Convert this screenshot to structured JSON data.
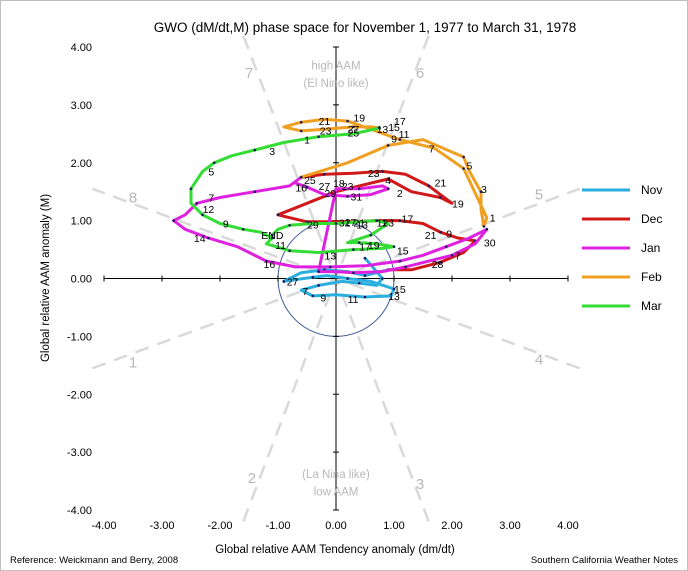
{
  "chart_data": {
    "type": "line",
    "title": "GWO (dM/dt,M)  phase space for November 1, 1977 to March 31, 1978",
    "xlabel": "Global relative AAM Tendency anomaly  (dm/dt)",
    "ylabel": "Global relative AAM anomaly  (M)",
    "xlim": [
      -4,
      4
    ],
    "ylim": [
      -4,
      4
    ],
    "xticks": [
      "-4.00",
      "-3.00",
      "-2.00",
      "-1.00",
      "0.00",
      "1.00",
      "2.00",
      "3.00",
      "4.00"
    ],
    "yticks": [
      "-4.00",
      "-3.00",
      "-2.00",
      "-1.00",
      "0.00",
      "1.00",
      "2.00",
      "3.00",
      "4.00"
    ],
    "grid": false,
    "legend_position": "right",
    "reference_circle_radius": 1,
    "phase_labels": [
      {
        "label": "1",
        "x": -3.5,
        "y": -1.45
      },
      {
        "label": "2",
        "x": -1.45,
        "y": -3.45
      },
      {
        "label": "3",
        "x": 1.45,
        "y": -3.55
      },
      {
        "label": "4",
        "x": 3.5,
        "y": -1.4
      },
      {
        "label": "5",
        "x": 3.5,
        "y": 1.45
      },
      {
        "label": "6",
        "x": 1.45,
        "y": 3.55
      },
      {
        "label": "7",
        "x": -1.5,
        "y": 3.55
      },
      {
        "label": "8",
        "x": -3.5,
        "y": 1.4
      }
    ],
    "region_labels": {
      "top_line1": "high AAM",
      "top_line2": "(El Nino like)",
      "bottom_line1": "(La Nina like)",
      "bottom_line2": "low AAM"
    },
    "end_label": "END",
    "series": [
      {
        "name": "Nov",
        "color": "#2aaee0",
        "points": [
          [
            0.5,
            0.35
          ],
          [
            0.7,
            0.12
          ],
          [
            0.8,
            0.0
          ],
          [
            0.7,
            -0.12
          ],
          [
            0.4,
            -0.08
          ],
          [
            0.1,
            -0.05
          ],
          [
            -0.3,
            -0.12
          ],
          [
            -0.6,
            -0.2
          ],
          [
            -0.4,
            -0.3
          ],
          [
            0.0,
            -0.28
          ],
          [
            0.5,
            -0.32
          ],
          [
            0.95,
            -0.3
          ],
          [
            1.0,
            -0.18
          ],
          [
            0.6,
            -0.05
          ],
          [
            0.2,
            0.0
          ],
          [
            -0.15,
            0.05
          ],
          [
            -0.4,
            0.02
          ],
          [
            -0.7,
            -0.02
          ],
          [
            -0.9,
            -0.05
          ],
          [
            -0.6,
            0.1
          ],
          [
            -0.2,
            0.15
          ],
          [
            0.2,
            0.12
          ],
          [
            0.5,
            0.05
          ],
          [
            0.9,
            0.15
          ]
        ],
        "labels": [
          {
            "text": "27",
            "x": -0.85,
            "y": -0.05
          },
          {
            "text": "7",
            "x": -0.58,
            "y": -0.22
          },
          {
            "text": "9",
            "x": -0.27,
            "y": -0.33
          },
          {
            "text": "11",
            "x": 0.2,
            "y": -0.35
          },
          {
            "text": "13",
            "x": 0.9,
            "y": -0.3
          },
          {
            "text": "15",
            "x": 1.0,
            "y": -0.18
          }
        ]
      },
      {
        "name": "Dec",
        "color": "#d01818",
        "points": [
          [
            0.9,
            0.15
          ],
          [
            1.3,
            0.15
          ],
          [
            1.8,
            0.28
          ],
          [
            2.2,
            0.45
          ],
          [
            2.4,
            0.65
          ],
          [
            2.1,
            0.7
          ],
          [
            1.8,
            0.8
          ],
          [
            1.5,
            0.95
          ],
          [
            1.1,
            1.0
          ],
          [
            0.7,
            1.0
          ],
          [
            0.3,
            0.98
          ],
          [
            -0.1,
            0.98
          ],
          [
            -0.5,
            0.98
          ],
          [
            -0.8,
            1.05
          ],
          [
            -1.0,
            1.1
          ],
          [
            -0.5,
            1.3
          ],
          [
            0.0,
            1.5
          ],
          [
            0.4,
            1.6
          ],
          [
            0.9,
            1.72
          ],
          [
            1.3,
            1.5
          ],
          [
            1.8,
            1.4
          ],
          [
            2.0,
            1.3
          ],
          [
            1.6,
            1.6
          ],
          [
            1.2,
            1.8
          ],
          [
            0.8,
            1.85
          ],
          [
            0.3,
            1.82
          ],
          [
            -0.2,
            1.8
          ],
          [
            -0.6,
            1.75
          ]
        ],
        "labels": [
          {
            "text": "28",
            "x": 1.65,
            "y": 0.25
          },
          {
            "text": "7",
            "x": 2.05,
            "y": 0.4
          },
          {
            "text": "9",
            "x": 1.9,
            "y": 0.78
          },
          {
            "text": "21",
            "x": 1.53,
            "y": 0.75
          },
          {
            "text": "17",
            "x": 1.13,
            "y": 1.04
          },
          {
            "text": "19",
            "x": 2.0,
            "y": 1.3
          },
          {
            "text": "21",
            "x": 1.7,
            "y": 1.66
          },
          {
            "text": "23",
            "x": 0.55,
            "y": 1.82
          }
        ]
      },
      {
        "name": "Jan",
        "color": "#e020e0",
        "points": [
          [
            -0.6,
            1.75
          ],
          [
            -0.8,
            1.6
          ],
          [
            -1.4,
            1.5
          ],
          [
            -2.0,
            1.4
          ],
          [
            -2.4,
            1.3
          ],
          [
            -2.6,
            1.1
          ],
          [
            -2.8,
            1.0
          ],
          [
            -2.6,
            0.85
          ],
          [
            -2.2,
            0.7
          ],
          [
            -1.7,
            0.55
          ],
          [
            -1.2,
            0.3
          ],
          [
            -0.7,
            0.2
          ],
          [
            -0.1,
            0.2
          ],
          [
            0.5,
            0.22
          ],
          [
            1.1,
            0.3
          ],
          [
            1.5,
            0.4
          ],
          [
            1.9,
            0.55
          ],
          [
            2.3,
            0.7
          ],
          [
            2.6,
            0.85
          ],
          [
            2.4,
            0.6
          ],
          [
            2.0,
            0.4
          ],
          [
            1.6,
            0.3
          ],
          [
            1.2,
            0.2
          ],
          [
            0.8,
            0.12
          ],
          [
            0.3,
            0.1
          ],
          [
            0.0,
            0.12
          ],
          [
            -0.3,
            0.12
          ],
          [
            0.0,
            1.55
          ],
          [
            0.4,
            1.55
          ],
          [
            0.8,
            1.6
          ],
          [
            0.9,
            1.55
          ],
          [
            0.6,
            1.45
          ],
          [
            0.2,
            1.42
          ],
          [
            -0.2,
            1.45
          ],
          [
            -0.5,
            1.58
          ],
          [
            -0.7,
            1.65
          ]
        ],
        "labels": [
          {
            "text": "14",
            "x": -2.45,
            "y": 0.7
          },
          {
            "text": "16",
            "x": -1.25,
            "y": 0.25
          },
          {
            "text": "12",
            "x": -2.3,
            "y": 1.2
          },
          {
            "text": "7",
            "x": -2.2,
            "y": 1.4
          },
          {
            "text": "9",
            "x": -1.95,
            "y": 0.95
          },
          {
            "text": "30",
            "x": 2.55,
            "y": 0.62
          },
          {
            "text": "2",
            "x": 1.05,
            "y": 1.48
          },
          {
            "text": "4",
            "x": 0.85,
            "y": 1.7
          },
          {
            "text": "31",
            "x": 0.25,
            "y": 1.42
          },
          {
            "text": "29",
            "x": -0.2,
            "y": 1.48
          },
          {
            "text": "27",
            "x": -0.3,
            "y": 1.6
          },
          {
            "text": "25",
            "x": -0.55,
            "y": 1.7
          },
          {
            "text": "16",
            "x": -0.7,
            "y": 1.57
          },
          {
            "text": "18",
            "x": -0.05,
            "y": 1.65
          },
          {
            "text": "23",
            "x": 0.1,
            "y": 1.6
          }
        ]
      },
      {
        "name": "Feb",
        "color": "#f0a020",
        "points": [
          [
            -0.6,
            1.75
          ],
          [
            0.2,
            2.0
          ],
          [
            0.9,
            2.3
          ],
          [
            1.5,
            2.4
          ],
          [
            2.2,
            2.1
          ],
          [
            2.3,
            1.85
          ],
          [
            2.5,
            1.5
          ],
          [
            2.5,
            1.2
          ],
          [
            2.55,
            0.9
          ],
          [
            2.6,
            1.05
          ],
          [
            2.2,
            1.9
          ],
          [
            1.7,
            2.25
          ],
          [
            1.1,
            2.4
          ],
          [
            0.6,
            2.58
          ],
          [
            0.2,
            2.72
          ],
          [
            -0.2,
            2.75
          ],
          [
            -0.6,
            2.7
          ],
          [
            -0.9,
            2.62
          ],
          [
            -0.6,
            2.55
          ],
          [
            -0.2,
            2.58
          ],
          [
            0.3,
            2.62
          ],
          [
            0.6,
            2.62
          ],
          [
            0.75,
            2.6
          ]
        ],
        "labels": [
          {
            "text": "1",
            "x": 2.65,
            "y": 1.05
          },
          {
            "text": "3",
            "x": 2.5,
            "y": 1.55
          },
          {
            "text": "5",
            "x": 2.25,
            "y": 1.95
          },
          {
            "text": "7",
            "x": 1.6,
            "y": 2.25
          },
          {
            "text": "9",
            "x": 0.95,
            "y": 2.42
          },
          {
            "text": "11",
            "x": 1.08,
            "y": 2.5
          },
          {
            "text": "13",
            "x": 0.7,
            "y": 2.58
          },
          {
            "text": "15",
            "x": 0.9,
            "y": 2.62
          },
          {
            "text": "17",
            "x": 1.0,
            "y": 2.72
          },
          {
            "text": "19",
            "x": 0.3,
            "y": 2.78
          },
          {
            "text": "21",
            "x": -0.3,
            "y": 2.72
          },
          {
            "text": "23",
            "x": -0.28,
            "y": 2.56
          },
          {
            "text": "25",
            "x": 0.2,
            "y": 2.52
          },
          {
            "text": "27",
            "x": 0.2,
            "y": 2.58
          }
        ]
      },
      {
        "name": "Mar",
        "color": "#33dd33",
        "points": [
          [
            0.75,
            2.6
          ],
          [
            0.3,
            2.5
          ],
          [
            -0.3,
            2.45
          ],
          [
            -0.9,
            2.35
          ],
          [
            -1.4,
            2.22
          ],
          [
            -1.8,
            2.12
          ],
          [
            -2.1,
            2.0
          ],
          [
            -2.3,
            1.85
          ],
          [
            -2.5,
            1.55
          ],
          [
            -2.5,
            1.3
          ],
          [
            -2.3,
            1.1
          ],
          [
            -2.0,
            0.95
          ],
          [
            -1.6,
            0.85
          ],
          [
            -1.3,
            0.8
          ],
          [
            -1.1,
            0.7
          ],
          [
            -1.2,
            0.6
          ],
          [
            -0.8,
            0.48
          ],
          [
            -0.3,
            0.45
          ],
          [
            0.3,
            0.5
          ],
          [
            0.8,
            0.52
          ],
          [
            1.0,
            0.55
          ],
          [
            0.7,
            0.6
          ],
          [
            0.4,
            0.62
          ],
          [
            0.2,
            0.62
          ],
          [
            0.6,
            0.75
          ],
          [
            0.9,
            0.95
          ],
          [
            0.7,
            1.0
          ],
          [
            0.4,
            0.98
          ],
          [
            0.0,
            0.95
          ],
          [
            -0.4,
            0.95
          ],
          [
            -0.8,
            0.92
          ],
          [
            -1.0,
            0.85
          ],
          [
            -1.1,
            0.75
          ],
          [
            -1.15,
            0.65
          ]
        ],
        "labels": [
          {
            "text": "1",
            "x": -0.55,
            "y": 2.4
          },
          {
            "text": "3",
            "x": -1.15,
            "y": 2.2
          },
          {
            "text": "5",
            "x": -2.2,
            "y": 1.85
          },
          {
            "text": "13",
            "x": -0.2,
            "y": 0.4
          },
          {
            "text": "15",
            "x": 1.05,
            "y": 0.48
          },
          {
            "text": "17",
            "x": 0.4,
            "y": 0.55
          },
          {
            "text": "19",
            "x": 0.55,
            "y": 0.58
          },
          {
            "text": "29",
            "x": -0.5,
            "y": 0.93
          },
          {
            "text": "11",
            "x": -1.05,
            "y": 0.58
          },
          {
            "text": "21",
            "x": 0.3,
            "y": 0.97
          },
          {
            "text": "23",
            "x": 0.8,
            "y": 0.97
          },
          {
            "text": "27",
            "x": 0.15,
            "y": 0.98
          },
          {
            "text": "31",
            "x": 0.05,
            "y": 0.97
          },
          {
            "text": "11",
            "x": 0.7,
            "y": 0.97
          },
          {
            "text": "13",
            "x": 0.35,
            "y": 0.93
          }
        ]
      }
    ]
  },
  "footer": {
    "reference": "Reference: Weickmann and Berry, 2008",
    "source": "Southern California Weather Notes"
  }
}
